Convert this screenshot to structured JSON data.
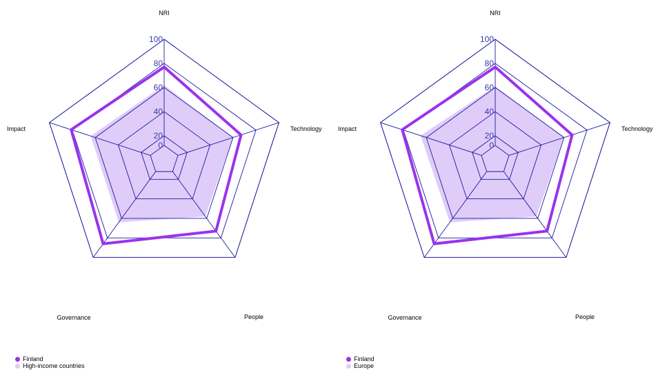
{
  "colors": {
    "grid": "#1a1aa0",
    "tick": "#3a3aa8",
    "country": "#9933ee",
    "comparison_fill": "#e0ccf8"
  },
  "chart_data": [
    {
      "type": "radar",
      "axes": [
        "NRI",
        "Technology",
        "People",
        "Governance",
        "Impact"
      ],
      "rlim": [
        0,
        100
      ],
      "ticks": [
        "0",
        "20",
        "40",
        "60",
        "80",
        "100"
      ],
      "series": [
        {
          "name": "Finland",
          "style": "line",
          "values": [
            77,
            67,
            73,
            86,
            81
          ]
        },
        {
          "name": "High-income countries",
          "style": "area",
          "values": [
            62,
            60,
            58,
            64,
            64
          ]
        }
      ],
      "legend": [
        "Finland",
        "High-income countries"
      ],
      "legend_position": "bottom-left"
    },
    {
      "type": "radar",
      "axes": [
        "NRI",
        "Technology",
        "People",
        "Governance",
        "Impact"
      ],
      "rlim": [
        0,
        100
      ],
      "ticks": [
        "0",
        "20",
        "40",
        "60",
        "80",
        "100"
      ],
      "series": [
        {
          "name": "Finland",
          "style": "line",
          "values": [
            77,
            67,
            73,
            86,
            81
          ]
        },
        {
          "name": "Europe",
          "style": "area",
          "values": [
            61,
            60,
            58,
            64,
            65
          ]
        }
      ],
      "legend": [
        "Finland",
        "Europe"
      ],
      "legend_position": "bottom-left"
    }
  ]
}
